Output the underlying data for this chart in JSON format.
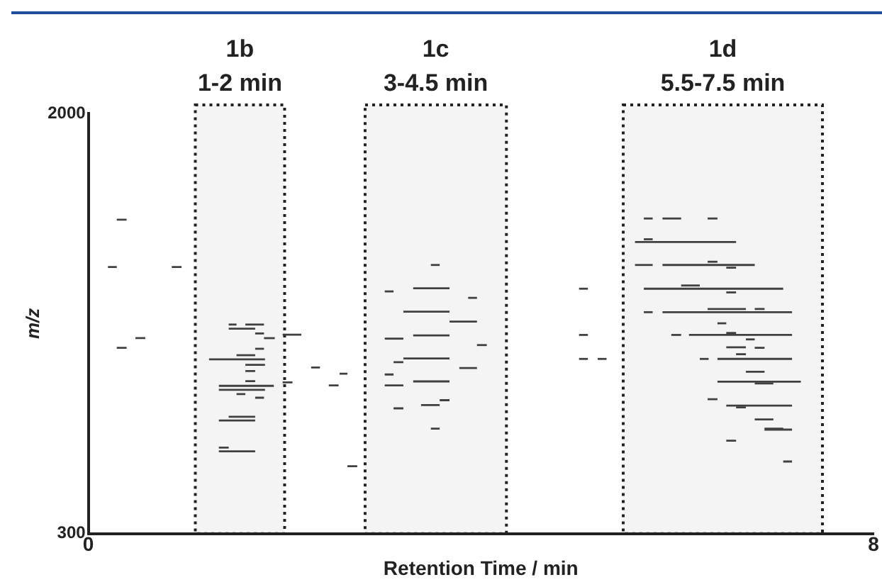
{
  "chart_data": {
    "type": "line",
    "xlabel": "Retention Time / min",
    "ylabel": "m/z",
    "xlim": [
      0,
      8
    ],
    "xticks": [
      0,
      8
    ],
    "ylim": [
      300,
      2000
    ],
    "yticks": [
      300,
      2000
    ],
    "grid": false,
    "legend": false,
    "marker": "none",
    "bands": [
      {
        "axis": "x",
        "from": 1.09,
        "to": 2.0,
        "label": "1b\n1-2 min",
        "color": "#222222"
      },
      {
        "axis": "x",
        "from": 2.82,
        "to": 4.26,
        "label": "1c\n3-4.5 min",
        "color": "#222222"
      },
      {
        "axis": "x",
        "from": 5.45,
        "to": 7.48,
        "label": "1d\n5.5-7.5 min",
        "color": "#222222"
      }
    ],
    "series": [
      {
        "color": "#404040",
        "x": [
          0.29,
          0.39
        ],
        "values": [
          1570,
          1570
        ]
      },
      {
        "color": "#404040",
        "x": [
          0.2,
          0.29
        ],
        "values": [
          1379,
          1379
        ]
      },
      {
        "color": "#404040",
        "x": [
          0.85,
          0.95
        ],
        "values": [
          1379,
          1379
        ]
      },
      {
        "color": "#404040",
        "x": [
          0.48,
          0.58
        ],
        "values": [
          1091,
          1091
        ]
      },
      {
        "color": "#404040",
        "x": [
          0.29,
          0.39
        ],
        "values": [
          1052,
          1052
        ]
      },
      {
        "color": "#404040",
        "x": [
          1.43,
          1.51
        ],
        "values": [
          1146,
          1146
        ]
      },
      {
        "color": "#404040",
        "x": [
          1.6,
          1.79
        ],
        "values": [
          1146,
          1146
        ]
      },
      {
        "color": "#404040",
        "x": [
          1.43,
          1.7
        ],
        "values": [
          1129,
          1129
        ]
      },
      {
        "color": "#404040",
        "x": [
          1.7,
          1.79
        ],
        "values": [
          1110,
          1110
        ]
      },
      {
        "color": "#404040",
        "x": [
          1.79,
          1.9
        ],
        "values": [
          1091,
          1091
        ]
      },
      {
        "color": "#404040",
        "x": [
          1.7,
          1.79
        ],
        "values": [
          1048,
          1048
        ]
      },
      {
        "color": "#404040",
        "x": [
          1.51,
          1.7
        ],
        "values": [
          1022,
          1022
        ]
      },
      {
        "color": "#404040",
        "x": [
          1.23,
          1.8
        ],
        "values": [
          1005,
          1005
        ]
      },
      {
        "color": "#404040",
        "x": [
          1.6,
          1.8
        ],
        "values": [
          983,
          983
        ]
      },
      {
        "color": "#404040",
        "x": [
          1.6,
          1.7
        ],
        "values": [
          958,
          958
        ]
      },
      {
        "color": "#404040",
        "x": [
          1.6,
          1.7
        ],
        "values": [
          917,
          917
        ]
      },
      {
        "color": "#404040",
        "x": [
          1.33,
          1.89
        ],
        "values": [
          898,
          898
        ]
      },
      {
        "color": "#404040",
        "x": [
          1.33,
          1.8
        ],
        "values": [
          882,
          882
        ]
      },
      {
        "color": "#404040",
        "x": [
          1.51,
          1.6
        ],
        "values": [
          865,
          865
        ]
      },
      {
        "color": "#404040",
        "x": [
          1.7,
          1.79
        ],
        "values": [
          850,
          850
        ]
      },
      {
        "color": "#404040",
        "x": [
          1.43,
          1.7
        ],
        "values": [
          773,
          773
        ]
      },
      {
        "color": "#404040",
        "x": [
          1.33,
          1.7
        ],
        "values": [
          758,
          758
        ]
      },
      {
        "color": "#404040",
        "x": [
          1.33,
          1.43
        ],
        "values": [
          648,
          648
        ]
      },
      {
        "color": "#404040",
        "x": [
          1.33,
          1.7
        ],
        "values": [
          633,
          633
        ]
      },
      {
        "color": "#404040",
        "x": [
          1.98,
          2.17
        ],
        "values": [
          1105,
          1105
        ]
      },
      {
        "color": "#404040",
        "x": [
          1.98,
          2.08
        ],
        "values": [
          912,
          912
        ]
      },
      {
        "color": "#404040",
        "x": [
          2.27,
          2.36
        ],
        "values": [
          972,
          972
        ]
      },
      {
        "color": "#404040",
        "x": [
          2.56,
          2.64
        ],
        "values": [
          947,
          947
        ]
      },
      {
        "color": "#404040",
        "x": [
          2.45,
          2.55
        ],
        "values": [
          900,
          900
        ]
      },
      {
        "color": "#404040",
        "x": [
          2.64,
          2.74
        ],
        "values": [
          573,
          573
        ]
      },
      {
        "color": "#404040",
        "x": [
          3.49,
          3.58
        ],
        "values": [
          1387,
          1387
        ]
      },
      {
        "color": "#404040",
        "x": [
          3.02,
          3.11
        ],
        "values": [
          1280,
          1280
        ]
      },
      {
        "color": "#404040",
        "x": [
          3.31,
          3.68
        ],
        "values": [
          1293,
          1293
        ]
      },
      {
        "color": "#404040",
        "x": [
          3.87,
          3.96
        ],
        "values": [
          1254,
          1254
        ]
      },
      {
        "color": "#404040",
        "x": [
          3.21,
          3.68
        ],
        "values": [
          1198,
          1198
        ]
      },
      {
        "color": "#404040",
        "x": [
          3.68,
          3.96
        ],
        "values": [
          1158,
          1158
        ]
      },
      {
        "color": "#404040",
        "x": [
          3.02,
          3.21
        ],
        "values": [
          1089,
          1089
        ]
      },
      {
        "color": "#404040",
        "x": [
          3.31,
          3.68
        ],
        "values": [
          1102,
          1102
        ]
      },
      {
        "color": "#404040",
        "x": [
          3.96,
          4.06
        ],
        "values": [
          1063,
          1063
        ]
      },
      {
        "color": "#404040",
        "x": [
          3.21,
          3.68
        ],
        "values": [
          1009,
          1009
        ]
      },
      {
        "color": "#404040",
        "x": [
          3.11,
          3.21
        ],
        "values": [
          994,
          994
        ]
      },
      {
        "color": "#404040",
        "x": [
          3.78,
          3.96
        ],
        "values": [
          970,
          970
        ]
      },
      {
        "color": "#404040",
        "x": [
          3.02,
          3.11
        ],
        "values": [
          944,
          944
        ]
      },
      {
        "color": "#404040",
        "x": [
          3.02,
          3.21
        ],
        "values": [
          900,
          900
        ]
      },
      {
        "color": "#404040",
        "x": [
          3.31,
          3.68
        ],
        "values": [
          916,
          916
        ]
      },
      {
        "color": "#404040",
        "x": [
          3.58,
          3.68
        ],
        "values": [
          840,
          840
        ]
      },
      {
        "color": "#404040",
        "x": [
          3.39,
          3.58
        ],
        "values": [
          820,
          820
        ]
      },
      {
        "color": "#404040",
        "x": [
          3.11,
          3.21
        ],
        "values": [
          807,
          807
        ]
      },
      {
        "color": "#404040",
        "x": [
          3.49,
          3.58
        ],
        "values": [
          725,
          725
        ]
      },
      {
        "color": "#404040",
        "x": [
          5.0,
          5.09
        ],
        "values": [
          1291,
          1291
        ]
      },
      {
        "color": "#404040",
        "x": [
          5.0,
          5.09
        ],
        "values": [
          1104,
          1104
        ]
      },
      {
        "color": "#404040",
        "x": [
          5.0,
          5.09
        ],
        "values": [
          1007,
          1007
        ]
      },
      {
        "color": "#404040",
        "x": [
          5.19,
          5.28
        ],
        "values": [
          1007,
          1007
        ]
      },
      {
        "color": "#404040",
        "x": [
          5.66,
          5.75
        ],
        "values": [
          1575,
          1575
        ]
      },
      {
        "color": "#404040",
        "x": [
          5.85,
          6.04
        ],
        "values": [
          1575,
          1575
        ]
      },
      {
        "color": "#404040",
        "x": [
          6.31,
          6.41
        ],
        "values": [
          1575,
          1575
        ]
      },
      {
        "color": "#404040",
        "x": [
          5.66,
          5.75
        ],
        "values": [
          1491,
          1491
        ]
      },
      {
        "color": "#404040",
        "x": [
          5.57,
          6.6
        ],
        "values": [
          1480,
          1480
        ]
      },
      {
        "color": "#404040",
        "x": [
          5.57,
          5.75
        ],
        "values": [
          1387,
          1387
        ]
      },
      {
        "color": "#404040",
        "x": [
          5.85,
          6.79
        ],
        "values": [
          1387,
          1387
        ]
      },
      {
        "color": "#404040",
        "x": [
          6.31,
          6.41
        ],
        "values": [
          1400,
          1400
        ]
      },
      {
        "color": "#404040",
        "x": [
          6.5,
          6.6
        ],
        "values": [
          1376,
          1376
        ]
      },
      {
        "color": "#404040",
        "x": [
          6.04,
          6.23
        ],
        "values": [
          1304,
          1304
        ]
      },
      {
        "color": "#404040",
        "x": [
          5.66,
          7.08
        ],
        "values": [
          1291,
          1291
        ]
      },
      {
        "color": "#404040",
        "x": [
          6.5,
          6.6
        ],
        "values": [
          1276,
          1276
        ]
      },
      {
        "color": "#404040",
        "x": [
          6.31,
          6.7
        ],
        "values": [
          1209,
          1209
        ]
      },
      {
        "color": "#404040",
        "x": [
          6.79,
          6.89
        ],
        "values": [
          1209,
          1209
        ]
      },
      {
        "color": "#404040",
        "x": [
          5.66,
          5.75
        ],
        "values": [
          1196,
          1196
        ]
      },
      {
        "color": "#404040",
        "x": [
          5.85,
          7.17
        ],
        "values": [
          1196,
          1196
        ]
      },
      {
        "color": "#404040",
        "x": [
          6.41,
          6.5
        ],
        "values": [
          1151,
          1151
        ]
      },
      {
        "color": "#404040",
        "x": [
          6.5,
          6.6
        ],
        "values": [
          1112,
          1112
        ]
      },
      {
        "color": "#404040",
        "x": [
          5.94,
          6.04
        ],
        "values": [
          1104,
          1104
        ]
      },
      {
        "color": "#404040",
        "x": [
          6.12,
          7.17
        ],
        "values": [
          1104,
          1104
        ]
      },
      {
        "color": "#404040",
        "x": [
          6.7,
          6.79
        ],
        "values": [
          1086,
          1086
        ]
      },
      {
        "color": "#404040",
        "x": [
          6.5,
          6.7
        ],
        "values": [
          1054,
          1054
        ]
      },
      {
        "color": "#404040",
        "x": [
          6.79,
          6.89
        ],
        "values": [
          1052,
          1052
        ]
      },
      {
        "color": "#404040",
        "x": [
          6.6,
          6.7
        ],
        "values": [
          1026,
          1026
        ]
      },
      {
        "color": "#404040",
        "x": [
          6.23,
          6.32
        ],
        "values": [
          1007,
          1007
        ]
      },
      {
        "color": "#404040",
        "x": [
          6.41,
          7.17
        ],
        "values": [
          1007,
          1007
        ]
      },
      {
        "color": "#404040",
        "x": [
          6.7,
          6.89
        ],
        "values": [
          955,
          955
        ]
      },
      {
        "color": "#404040",
        "x": [
          6.41,
          7.26
        ],
        "values": [
          915,
          915
        ]
      },
      {
        "color": "#404040",
        "x": [
          6.79,
          6.98
        ],
        "values": [
          908,
          908
        ]
      },
      {
        "color": "#404040",
        "x": [
          6.31,
          6.41
        ],
        "values": [
          844,
          844
        ]
      },
      {
        "color": "#404040",
        "x": [
          6.5,
          7.17
        ],
        "values": [
          818,
          818
        ]
      },
      {
        "color": "#404040",
        "x": [
          6.6,
          6.7
        ],
        "values": [
          811,
          811
        ]
      },
      {
        "color": "#404040",
        "x": [
          6.79,
          6.98
        ],
        "values": [
          762,
          762
        ]
      },
      {
        "color": "#404040",
        "x": [
          6.89,
          7.08
        ],
        "values": [
          725,
          725
        ]
      },
      {
        "color": "#404040",
        "x": [
          6.89,
          7.17
        ],
        "values": [
          721,
          721
        ]
      },
      {
        "color": "#404040",
        "x": [
          6.5,
          6.6
        ],
        "values": [
          676,
          676
        ]
      },
      {
        "color": "#404040",
        "x": [
          7.08,
          7.17
        ],
        "values": [
          592,
          592
        ]
      }
    ]
  }
}
